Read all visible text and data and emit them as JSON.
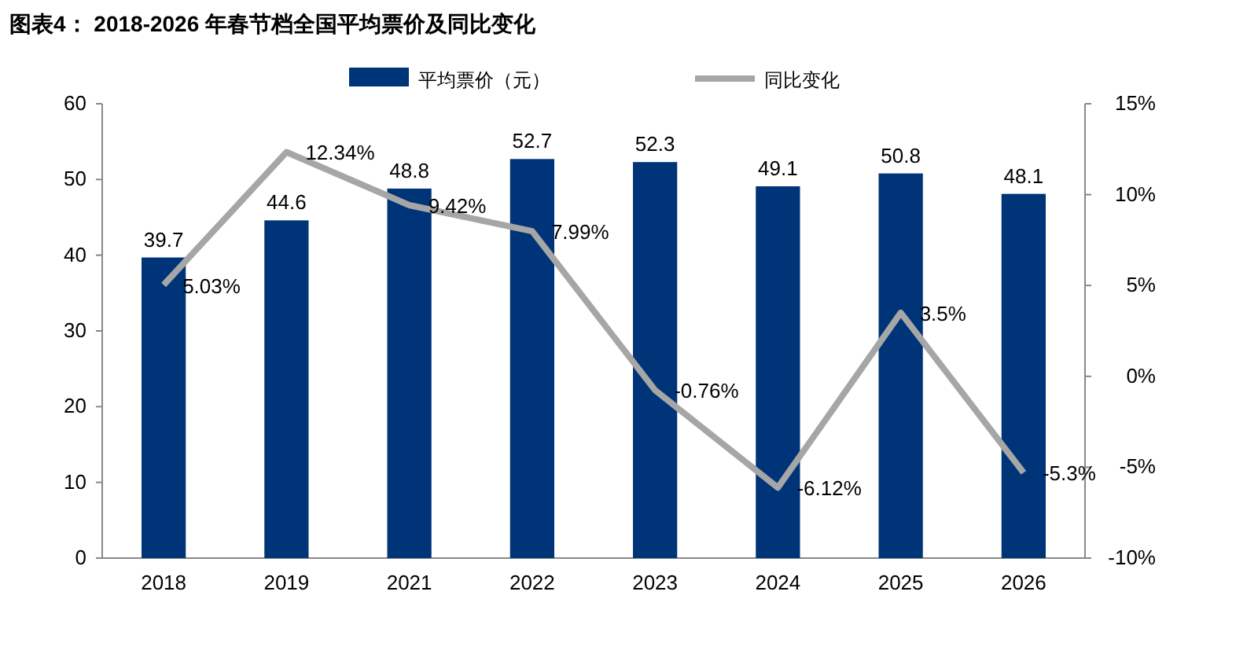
{
  "chart_data": {
    "type": "bar",
    "title": "图表4：  2018-2026 年春节档全国平均票价及同比变化",
    "categories": [
      "2018",
      "2019",
      "2021",
      "2022",
      "2023",
      "2024",
      "2025",
      "2026"
    ],
    "series": [
      {
        "name": "平均票价（元）",
        "color": "#003478",
        "values": [
          39.7,
          44.6,
          48.8,
          52.7,
          52.3,
          49.1,
          50.8,
          48.1
        ],
        "value_labels": [
          "39.7",
          "44.6",
          "48.8",
          "52.7",
          "52.3",
          "49.1",
          "50.8",
          "48.1"
        ]
      },
      {
        "name": "同比变化",
        "type": "line",
        "axis": "y2",
        "color": "#a6a6a6",
        "values": [
          5.03,
          12.34,
          9.42,
          7.99,
          -0.76,
          -6.12,
          3.5,
          -5.3
        ],
        "value_labels": [
          "5.03%",
          "12.34%",
          "9.42%",
          "7.99%",
          "-0.76%",
          "-6.12%",
          "3.5%",
          "-5.3%"
        ]
      }
    ],
    "ylim": [
      0,
      60
    ],
    "yticks": [
      0,
      10,
      20,
      30,
      40,
      50,
      60
    ],
    "y2lim": [
      -10,
      15
    ],
    "y2ticks": [
      {
        "value": -10,
        "label": "-10%"
      },
      {
        "value": -5,
        "label": "-5%"
      },
      {
        "value": 0,
        "label": "0%"
      },
      {
        "value": 5,
        "label": "5%"
      },
      {
        "value": 10,
        "label": "10%"
      },
      {
        "value": 15,
        "label": "15%"
      }
    ],
    "grid": false,
    "legend": "top",
    "line_style": "solid"
  }
}
